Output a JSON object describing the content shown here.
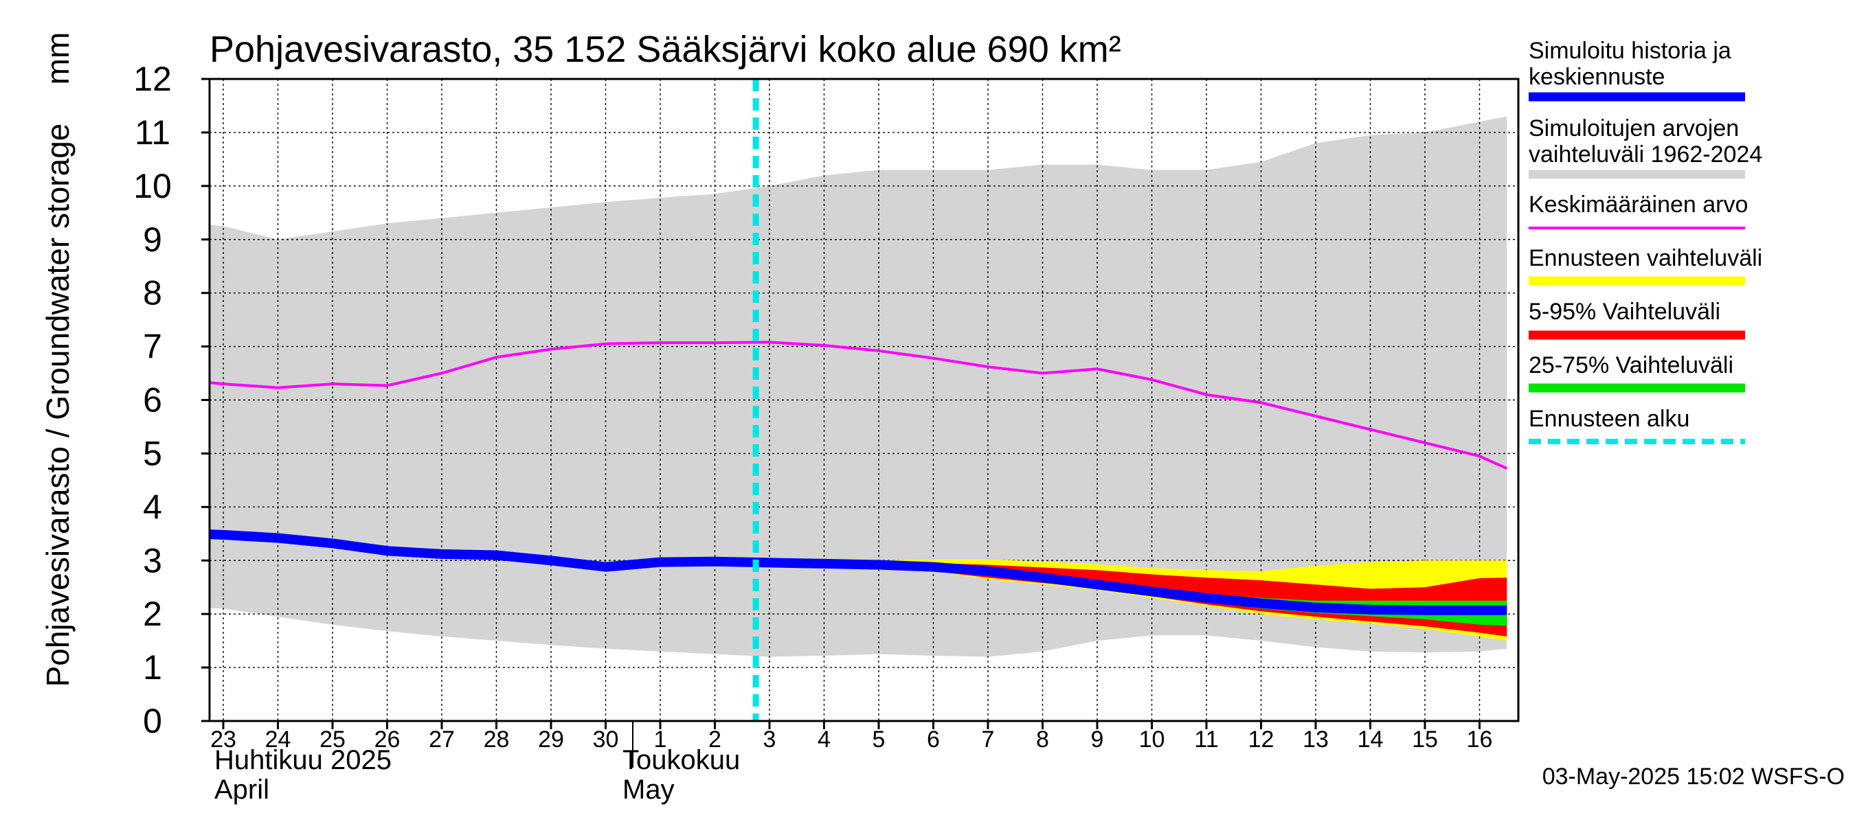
{
  "chart_data": {
    "type": "area",
    "title": "Pohjavesivarasto, 35 152 Sääksjärvi koko alue 690 km²",
    "ylabel": "Pohjavesivarasto / Groundwater storage",
    "yunit": "mm",
    "ylim": [
      0,
      12
    ],
    "yticks": [
      0,
      1,
      2,
      3,
      4,
      5,
      6,
      7,
      8,
      9,
      10,
      11,
      12
    ],
    "grid": true,
    "legend_position": "right",
    "x_tick_labels": [
      "23",
      "24",
      "25",
      "26",
      "27",
      "28",
      "29",
      "30",
      "1",
      "2",
      "3",
      "4",
      "5",
      "6",
      "7",
      "8",
      "9",
      "10",
      "11",
      "12",
      "13",
      "14",
      "15",
      "16"
    ],
    "months": [
      {
        "start_index": 0,
        "line1": "Huhtikuu  2025",
        "line2": "April"
      },
      {
        "start_index": 8,
        "line1": "Toukokuu",
        "line2": "May"
      }
    ],
    "forecast_start_index": 9.75,
    "footer": "03-May-2025 15:02 WSFS-O",
    "colors": {
      "range": "#d4d4d4",
      "mean": "#ff00ff",
      "forecast_range": "#ffff00",
      "p5_95": "#ff0000",
      "p25_75": "#00e400",
      "simulated": "#0000ff",
      "forecast_start": "#00e6e6"
    },
    "series": [
      {
        "name": "Simuloitujen arvojen vaihteluväli 1962-2024",
        "kind": "band",
        "x": [
          -0.5,
          0,
          1,
          2,
          3,
          4,
          5,
          6,
          7,
          8,
          9,
          10,
          11,
          12,
          13,
          14,
          15,
          16,
          17,
          18,
          19,
          20,
          21,
          22,
          23,
          23.5
        ],
        "low": [
          2.12,
          2.1,
          1.95,
          1.8,
          1.68,
          1.58,
          1.5,
          1.42,
          1.35,
          1.3,
          1.25,
          1.2,
          1.22,
          1.25,
          1.22,
          1.2,
          1.3,
          1.5,
          1.6,
          1.6,
          1.5,
          1.38,
          1.3,
          1.28,
          1.3,
          1.35
        ],
        "high": [
          9.3,
          9.25,
          9.0,
          9.15,
          9.3,
          9.4,
          9.5,
          9.6,
          9.7,
          9.78,
          9.85,
          10.0,
          10.2,
          10.3,
          10.3,
          10.3,
          10.4,
          10.4,
          10.3,
          10.3,
          10.45,
          10.8,
          10.95,
          11.0,
          11.2,
          11.3
        ]
      },
      {
        "name": "Keskimääräinen arvo",
        "kind": "line",
        "x": [
          -0.5,
          0,
          1,
          2,
          3,
          4,
          5,
          6,
          7,
          8,
          9,
          10,
          11,
          12,
          13,
          14,
          15,
          16,
          17,
          18,
          19,
          20,
          21,
          22,
          23,
          23.5
        ],
        "values": [
          6.35,
          6.3,
          6.23,
          6.3,
          6.27,
          6.5,
          6.8,
          6.95,
          7.05,
          7.07,
          7.07,
          7.08,
          7.02,
          6.92,
          6.78,
          6.62,
          6.5,
          6.58,
          6.38,
          6.1,
          5.95,
          5.7,
          5.45,
          5.2,
          4.95,
          4.72
        ]
      },
      {
        "name": "Ennusteen vaihteluväli",
        "kind": "band",
        "x": [
          9.75,
          10,
          11,
          12,
          13,
          14,
          15,
          16,
          17,
          18,
          19,
          20,
          21,
          22,
          23,
          23.5
        ],
        "low": [
          2.96,
          2.96,
          2.95,
          2.92,
          2.8,
          2.65,
          2.55,
          2.45,
          2.3,
          2.15,
          2.0,
          1.9,
          1.82,
          1.72,
          1.58,
          1.5
        ],
        "high": [
          2.96,
          2.96,
          2.97,
          3.0,
          3.02,
          3.02,
          2.98,
          2.93,
          2.86,
          2.82,
          2.8,
          2.9,
          2.97,
          3.0,
          3.0,
          3.0
        ]
      },
      {
        "name": "5-95% Vaihteluväli",
        "kind": "band",
        "x": [
          9.75,
          10,
          11,
          12,
          13,
          14,
          15,
          16,
          17,
          18,
          19,
          20,
          21,
          22,
          23,
          23.5
        ],
        "low": [
          2.96,
          2.96,
          2.95,
          2.92,
          2.8,
          2.68,
          2.58,
          2.48,
          2.33,
          2.18,
          2.05,
          1.95,
          1.86,
          1.77,
          1.65,
          1.58
        ],
        "high": [
          2.96,
          2.96,
          2.96,
          2.95,
          2.95,
          2.92,
          2.87,
          2.82,
          2.74,
          2.68,
          2.63,
          2.55,
          2.47,
          2.5,
          2.67,
          2.68
        ]
      },
      {
        "name": "25-75% Vaihteluväli",
        "kind": "band",
        "x": [
          9.75,
          10,
          11,
          12,
          13,
          14,
          15,
          16,
          17,
          18,
          19,
          20,
          21,
          22,
          23,
          23.5
        ],
        "low": [
          2.96,
          2.96,
          2.95,
          2.92,
          2.82,
          2.72,
          2.63,
          2.52,
          2.38,
          2.23,
          2.1,
          2.02,
          1.96,
          1.9,
          1.8,
          1.78
        ],
        "high": [
          2.96,
          2.96,
          2.95,
          2.93,
          2.88,
          2.8,
          2.72,
          2.62,
          2.5,
          2.38,
          2.3,
          2.25,
          2.25,
          2.25,
          2.25,
          2.25
        ]
      },
      {
        "name": "Simuloitu historia ja keskiennuste",
        "kind": "line",
        "x": [
          -0.5,
          0,
          1,
          2,
          3,
          4,
          5,
          6,
          7,
          8,
          9,
          10,
          11,
          12,
          13,
          14,
          15,
          16,
          17,
          18,
          19,
          20,
          21,
          22,
          23,
          23.5
        ],
        "values": [
          3.5,
          3.48,
          3.42,
          3.32,
          3.18,
          3.12,
          3.1,
          3.0,
          2.88,
          2.97,
          2.98,
          2.96,
          2.94,
          2.92,
          2.88,
          2.8,
          2.68,
          2.55,
          2.42,
          2.3,
          2.2,
          2.12,
          2.08,
          2.07,
          2.07,
          2.07
        ]
      },
      {
        "name": "Ennusteen alku",
        "kind": "vline",
        "x_index": 9.75
      }
    ]
  }
}
